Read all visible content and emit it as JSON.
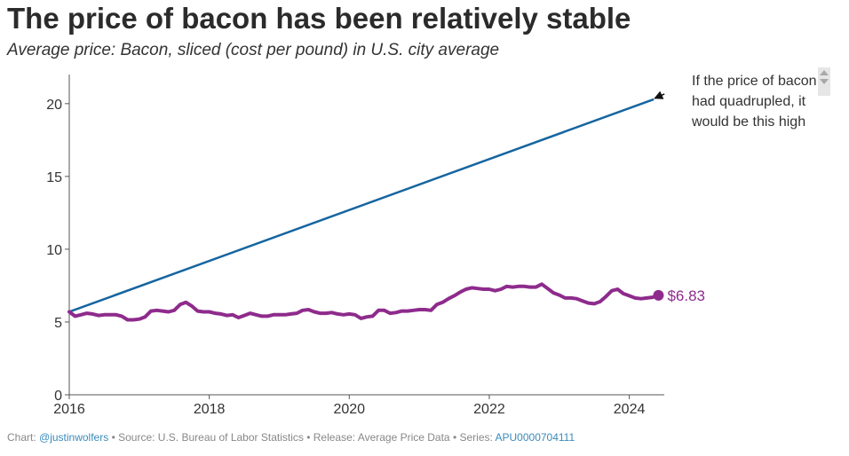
{
  "title": "The price of bacon has been relatively stable",
  "subtitle": "Average price: Bacon, sliced (cost per pound) in U.S. city average",
  "annotation": {
    "lines": [
      "If the price of bacon",
      "had quadrupled, it",
      "would be this high"
    ]
  },
  "footer": {
    "chart_prefix": "Chart: ",
    "author": "@justinwolfers",
    "source_text": " • Source: U.S. Bureau of Labor Statistics • Release: Average Price Data • Series: ",
    "series_id": "APU0000704111"
  },
  "colors": {
    "bacon_line": "#8e2b8c",
    "quadrupled_line": "#1565a0",
    "axis": "#555555",
    "tick_text": "#333333",
    "arrow": "#111111"
  },
  "chart_data": {
    "type": "line",
    "xlabel": "",
    "ylabel": "",
    "xlim": [
      2016,
      2024.5
    ],
    "ylim": [
      0,
      22
    ],
    "xticks": [
      2016,
      2018,
      2020,
      2022,
      2024
    ],
    "yticks": [
      0,
      5,
      10,
      15,
      20
    ],
    "end_label": "$6.83",
    "series": [
      {
        "name": "Bacon, sliced (cost per pound)",
        "x": [
          2016.0,
          2016.083,
          2016.167,
          2016.25,
          2016.333,
          2016.417,
          2016.5,
          2016.583,
          2016.667,
          2016.75,
          2016.833,
          2016.917,
          2017.0,
          2017.083,
          2017.167,
          2017.25,
          2017.333,
          2017.417,
          2017.5,
          2017.583,
          2017.667,
          2017.75,
          2017.833,
          2017.917,
          2018.0,
          2018.083,
          2018.167,
          2018.25,
          2018.333,
          2018.417,
          2018.5,
          2018.583,
          2018.667,
          2018.75,
          2018.833,
          2018.917,
          2019.0,
          2019.083,
          2019.167,
          2019.25,
          2019.333,
          2019.417,
          2019.5,
          2019.583,
          2019.667,
          2019.75,
          2019.833,
          2019.917,
          2020.0,
          2020.083,
          2020.167,
          2020.25,
          2020.333,
          2020.417,
          2020.5,
          2020.583,
          2020.667,
          2020.75,
          2020.833,
          2020.917,
          2021.0,
          2021.083,
          2021.167,
          2021.25,
          2021.333,
          2021.417,
          2021.5,
          2021.583,
          2021.667,
          2021.75,
          2021.833,
          2021.917,
          2022.0,
          2022.083,
          2022.167,
          2022.25,
          2022.333,
          2022.417,
          2022.5,
          2022.583,
          2022.667,
          2022.75,
          2022.833,
          2022.917,
          2023.0,
          2023.083,
          2023.167,
          2023.25,
          2023.333,
          2023.417,
          2023.5,
          2023.583,
          2023.667,
          2023.75,
          2023.833,
          2023.917,
          2024.0,
          2024.083,
          2024.167,
          2024.25,
          2024.333,
          2024.417
        ],
        "values": [
          5.7,
          5.4,
          5.5,
          5.6,
          5.55,
          5.45,
          5.5,
          5.5,
          5.5,
          5.4,
          5.15,
          5.15,
          5.2,
          5.35,
          5.75,
          5.8,
          5.75,
          5.7,
          5.8,
          6.2,
          6.35,
          6.1,
          5.75,
          5.7,
          5.7,
          5.6,
          5.55,
          5.45,
          5.5,
          5.3,
          5.45,
          5.6,
          5.5,
          5.4,
          5.4,
          5.5,
          5.5,
          5.5,
          5.55,
          5.6,
          5.8,
          5.85,
          5.7,
          5.6,
          5.6,
          5.65,
          5.55,
          5.5,
          5.55,
          5.5,
          5.25,
          5.35,
          5.4,
          5.8,
          5.8,
          5.6,
          5.65,
          5.75,
          5.75,
          5.8,
          5.85,
          5.85,
          5.8,
          6.2,
          6.35,
          6.6,
          6.8,
          7.05,
          7.25,
          7.35,
          7.3,
          7.25,
          7.25,
          7.15,
          7.25,
          7.45,
          7.4,
          7.45,
          7.45,
          7.4,
          7.4,
          7.6,
          7.3,
          7.0,
          6.85,
          6.65,
          6.65,
          6.6,
          6.45,
          6.3,
          6.25,
          6.4,
          6.75,
          7.15,
          7.25,
          6.95,
          6.8,
          6.65,
          6.6,
          6.65,
          6.7,
          6.83
        ]
      },
      {
        "name": "If the price of bacon had quadrupled",
        "x": [
          2016.0,
          2024.35
        ],
        "values": [
          5.7,
          20.3
        ]
      }
    ]
  }
}
